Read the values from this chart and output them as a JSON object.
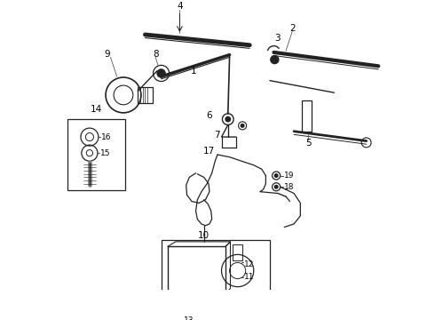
{
  "bg_color": "#ffffff",
  "lc": "#222222",
  "figsize": [
    4.9,
    3.6
  ],
  "dpi": 100,
  "fs": 7.5,
  "fs_sm": 6.5
}
